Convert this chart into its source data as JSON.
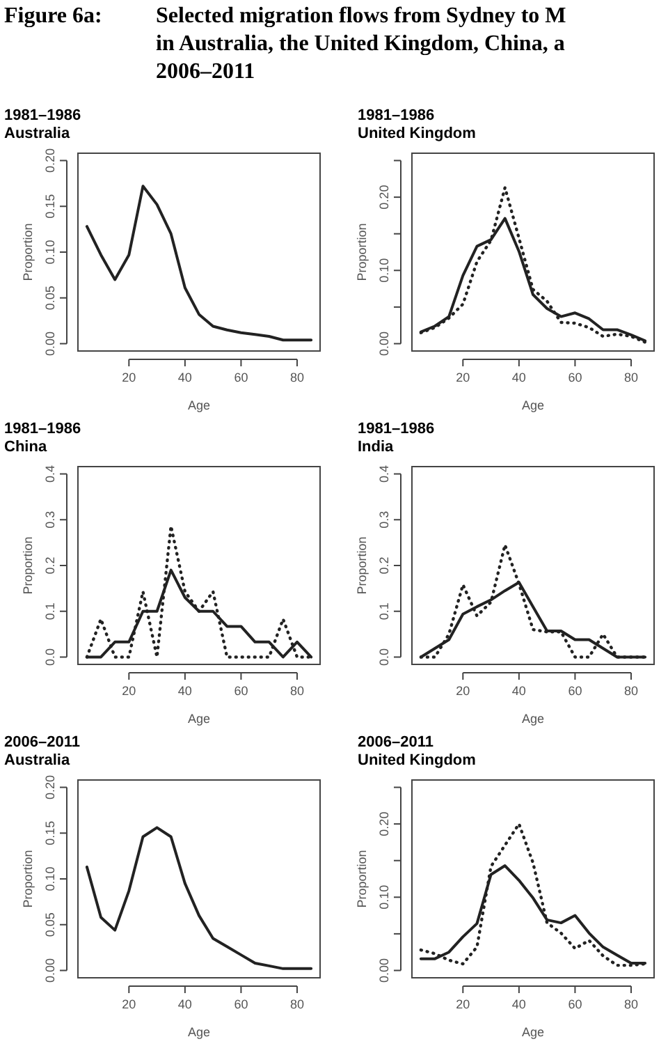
{
  "chart_data": [
    {
      "type": "line",
      "title": "1981–1986",
      "subtitle": "Australia",
      "xlabel": "Age",
      "ylabel": "Proportion",
      "annotations": [
        "Figure 6a:",
        "Selected migration flows from Sydney to M",
        "in Australia, the United Kingdom, China, a",
        "2006–2011"
      ],
      "x": [
        5,
        10,
        15,
        20,
        25,
        30,
        35,
        40,
        45,
        50,
        55,
        60,
        65,
        70,
        75,
        80,
        85
      ],
      "series": [
        {
          "color": "#222222",
          "line_style": "solid",
          "values": [
            0.128,
            0.097,
            0.07,
            0.097,
            0.172,
            0.152,
            0.12,
            0.061,
            0.032,
            0.019,
            0.015,
            0.012,
            0.01,
            0.008,
            0.004,
            0.004,
            0.004
          ]
        }
      ],
      "xlim": [
        1.8,
        88.2
      ],
      "xticks": [
        20,
        40,
        60,
        80
      ],
      "ylim": [
        -0.008,
        0.208
      ],
      "yticks": [
        {
          "value": 0,
          "label": "0.00"
        },
        {
          "value": 0.05,
          "label": "0.05"
        },
        {
          "value": 0.1,
          "label": "0.10"
        },
        {
          "value": 0.15,
          "label": "0.15"
        },
        {
          "value": 0.2,
          "label": "0.20"
        }
      ]
    },
    {
      "type": "line",
      "title": "1981–1986",
      "subtitle": "United Kingdom",
      "xlabel": "Age",
      "ylabel": "Proportion",
      "x": [
        5,
        10,
        15,
        20,
        25,
        30,
        35,
        40,
        45,
        50,
        55,
        60,
        65,
        70,
        75,
        80,
        85
      ],
      "series": [
        {
          "color": "#222222",
          "line_style": "solid",
          "values": [
            0.016,
            0.024,
            0.037,
            0.093,
            0.133,
            0.142,
            0.171,
            0.126,
            0.067,
            0.048,
            0.037,
            0.042,
            0.034,
            0.019,
            0.019,
            0.012,
            0.004
          ]
        },
        {
          "color": "#222222",
          "line_style": "dotted",
          "values": [
            0.015,
            0.022,
            0.035,
            0.054,
            0.112,
            0.141,
            0.213,
            0.144,
            0.074,
            0.058,
            0.029,
            0.028,
            0.022,
            0.01,
            0.013,
            0.01,
            0.002
          ]
        }
      ],
      "xlim": [
        1.8,
        88.2
      ],
      "xticks": [
        20,
        40,
        60,
        80
      ],
      "ylim": [
        -0.01,
        0.26
      ],
      "yticks": [
        {
          "value": 0,
          "label": "0.00"
        },
        {
          "value": 0.05,
          "label": null
        },
        {
          "value": 0.1,
          "label": "0.10"
        },
        {
          "value": 0.15,
          "label": null
        },
        {
          "value": 0.2,
          "label": "0.20"
        },
        {
          "value": 0.25,
          "label": null
        }
      ]
    },
    {
      "type": "line",
      "title": "1981–1986",
      "subtitle": "China",
      "xlabel": "Age",
      "ylabel": "Proportion",
      "x": [
        5,
        10,
        15,
        20,
        25,
        30,
        35,
        40,
        45,
        50,
        55,
        60,
        65,
        70,
        75,
        80,
        85
      ],
      "series": [
        {
          "color": "#222222",
          "line_style": "solid",
          "values": [
            0,
            0,
            0.033,
            0.033,
            0.1,
            0.1,
            0.19,
            0.13,
            0.1,
            0.1,
            0.067,
            0.067,
            0.033,
            0.033,
            0,
            0.033,
            0
          ]
        },
        {
          "color": "#222222",
          "line_style": "dotted",
          "values": [
            0,
            0.083,
            0,
            0,
            0.143,
            0,
            0.286,
            0.143,
            0.1,
            0.143,
            0,
            0,
            0,
            0,
            0.083,
            0,
            0
          ]
        }
      ],
      "xlim": [
        1.8,
        88.2
      ],
      "xticks": [
        20,
        40,
        60,
        80
      ],
      "ylim": [
        -0.016,
        0.416
      ],
      "yticks": [
        {
          "value": 0,
          "label": "0.0"
        },
        {
          "value": 0.1,
          "label": "0.1"
        },
        {
          "value": 0.2,
          "label": "0.2"
        },
        {
          "value": 0.3,
          "label": "0.3"
        },
        {
          "value": 0.4,
          "label": "0.4"
        }
      ]
    },
    {
      "type": "line",
      "title": "1981–1986",
      "subtitle": "India",
      "xlabel": "Age",
      "ylabel": "Proportion",
      "x": [
        5,
        10,
        15,
        20,
        25,
        30,
        35,
        40,
        45,
        50,
        55,
        60,
        65,
        70,
        75,
        80,
        85
      ],
      "series": [
        {
          "color": "#222222",
          "line_style": "solid",
          "values": [
            0,
            0.019,
            0.038,
            0.094,
            0.11,
            0.125,
            0.145,
            0.163,
            0.11,
            0.057,
            0.057,
            0.038,
            0.038,
            0.019,
            0,
            0,
            0
          ]
        },
        {
          "color": "#222222",
          "line_style": "dotted",
          "values": [
            0,
            0,
            0.05,
            0.158,
            0.09,
            0.12,
            0.245,
            0.16,
            0.06,
            0.055,
            0.055,
            0,
            0,
            0.05,
            0,
            0,
            0
          ]
        }
      ],
      "xlim": [
        1.8,
        88.2
      ],
      "xticks": [
        20,
        40,
        60,
        80
      ],
      "ylim": [
        -0.016,
        0.416
      ],
      "yticks": [
        {
          "value": 0,
          "label": "0.0"
        },
        {
          "value": 0.1,
          "label": "0.1"
        },
        {
          "value": 0.2,
          "label": "0.2"
        },
        {
          "value": 0.3,
          "label": "0.3"
        },
        {
          "value": 0.4,
          "label": "0.4"
        }
      ]
    },
    {
      "type": "line",
      "title": "2006–2011",
      "subtitle": "Australia",
      "xlabel": "Age",
      "ylabel": "Proportion",
      "x": [
        5,
        10,
        15,
        20,
        25,
        30,
        35,
        40,
        45,
        50,
        55,
        60,
        65,
        70,
        75,
        80,
        85
      ],
      "series": [
        {
          "color": "#222222",
          "line_style": "solid",
          "values": [
            0.113,
            0.058,
            0.044,
            0.087,
            0.146,
            0.156,
            0.146,
            0.095,
            0.06,
            0.035,
            0.026,
            0.017,
            0.008,
            0.005,
            0.002,
            0.002,
            0.002
          ]
        }
      ],
      "xlim": [
        1.8,
        88.2
      ],
      "xticks": [
        20,
        40,
        60,
        80
      ],
      "ylim": [
        -0.008,
        0.208
      ],
      "yticks": [
        {
          "value": 0,
          "label": "0.00"
        },
        {
          "value": 0.05,
          "label": "0.05"
        },
        {
          "value": 0.1,
          "label": "0.10"
        },
        {
          "value": 0.15,
          "label": "0.15"
        },
        {
          "value": 0.2,
          "label": "0.20"
        }
      ]
    },
    {
      "type": "line",
      "title": "2006–2011",
      "subtitle": "United Kingdom",
      "xlabel": "Age",
      "ylabel": "Proportion",
      "x": [
        5,
        10,
        15,
        20,
        25,
        30,
        35,
        40,
        45,
        50,
        55,
        60,
        65,
        70,
        75,
        80,
        85
      ],
      "series": [
        {
          "color": "#222222",
          "line_style": "solid",
          "values": [
            0.016,
            0.016,
            0.025,
            0.046,
            0.064,
            0.131,
            0.143,
            0.123,
            0.099,
            0.069,
            0.065,
            0.075,
            0.051,
            0.032,
            0.021,
            0.01,
            0.01
          ]
        },
        {
          "color": "#222222",
          "line_style": "dotted",
          "values": [
            0.028,
            0.023,
            0.014,
            0.009,
            0.032,
            0.142,
            0.171,
            0.2,
            0.147,
            0.065,
            0.051,
            0.03,
            0.041,
            0.02,
            0.007,
            0.007,
            0.009
          ]
        }
      ],
      "xlim": [
        1.8,
        88.2
      ],
      "xticks": [
        20,
        40,
        60,
        80
      ],
      "ylim": [
        -0.01,
        0.26
      ],
      "yticks": [
        {
          "value": 0,
          "label": "0.00"
        },
        {
          "value": 0.05,
          "label": null
        },
        {
          "value": 0.1,
          "label": "0.10"
        },
        {
          "value": 0.15,
          "label": null
        },
        {
          "value": 0.2,
          "label": "0.20"
        },
        {
          "value": 0.25,
          "label": null
        }
      ]
    }
  ]
}
